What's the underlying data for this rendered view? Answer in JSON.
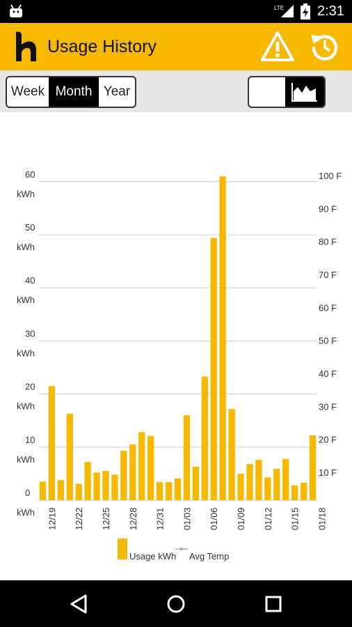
{
  "status_bar": {
    "time": "2:31",
    "network": "LTE"
  },
  "app_bar": {
    "title": "Usage History"
  },
  "range_selector": {
    "options": [
      "Week",
      "Month",
      "Year"
    ],
    "selected": "Month"
  },
  "colors": {
    "accent": "#f7b800",
    "bar": "#f7b800",
    "grid": "#cccccc"
  },
  "chart_data": {
    "type": "bar",
    "title": "",
    "left_axis": {
      "unit": "kWh",
      "ticks": [
        "0",
        "10",
        "20",
        "30",
        "40",
        "50",
        "60"
      ],
      "ylim": [
        0,
        61
      ]
    },
    "right_axis": {
      "ticks": [
        "10 F",
        "20 F",
        "30 F",
        "40 F",
        "50 F",
        "60 F",
        "70 F",
        "80 F",
        "90 F",
        "100 F"
      ]
    },
    "grid": true,
    "x_tick_labels": [
      "12/19",
      "12/22",
      "12/25",
      "12/28",
      "12/31",
      "01/03",
      "01/06",
      "01/09",
      "01/12",
      "01/15",
      "01/18"
    ],
    "values": [
      3.5,
      21.5,
      3.8,
      16.3,
      3.1,
      7.2,
      5.2,
      5.5,
      4.8,
      9.3,
      10.5,
      12.8,
      12.1,
      3.4,
      3.4,
      4.1,
      16.0,
      6.3,
      23.3,
      49.4,
      61.0,
      17.2,
      5.0,
      6.8,
      7.6,
      4.3,
      5.9,
      7.8,
      2.8,
      3.3,
      12.2
    ],
    "series": [
      {
        "name": "Usage kWh",
        "color": "#f7b800"
      },
      {
        "name": "Avg Temp",
        "color": "#aaaaaa"
      }
    ]
  }
}
